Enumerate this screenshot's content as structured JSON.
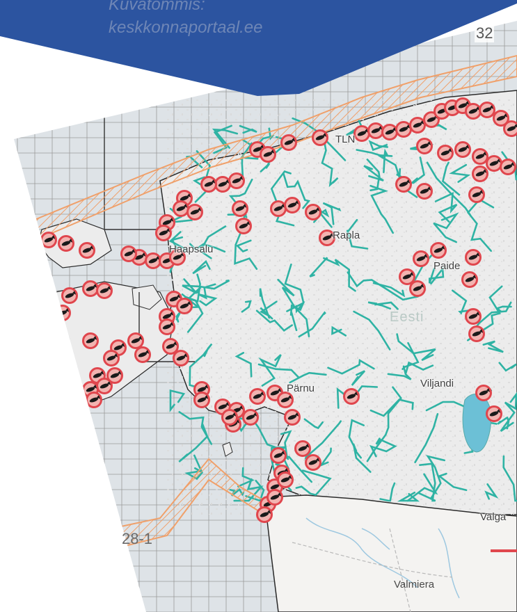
{
  "caption": {
    "line1": "Kuvatõmmis:",
    "line2": "keskkonnaportaal.ee",
    "banner_color": "#2c54a0"
  },
  "map": {
    "place_labels": {
      "haapsalu": "Haapsalu",
      "rapla": "Rapla",
      "parnu": "Pärnu",
      "viljandi": "Viljandi",
      "valmiera": "Valmiera",
      "paide": "Paide",
      "tallinn": "TLN",
      "valga": "Valga",
      "country": "Eesti"
    },
    "zone_labels": {
      "top_right": "32",
      "bottom_left": "28-1"
    },
    "colors": {
      "sea": "#dee3e7",
      "land": "#ececec",
      "latvia_land": "#f4f3f1",
      "rivers": "#2fb3a4",
      "fish_marker": "#e0464d",
      "zone_band": "#f0a06a",
      "grid_lines": "#9a9a9a"
    },
    "marker_icon": "fish-icon"
  }
}
